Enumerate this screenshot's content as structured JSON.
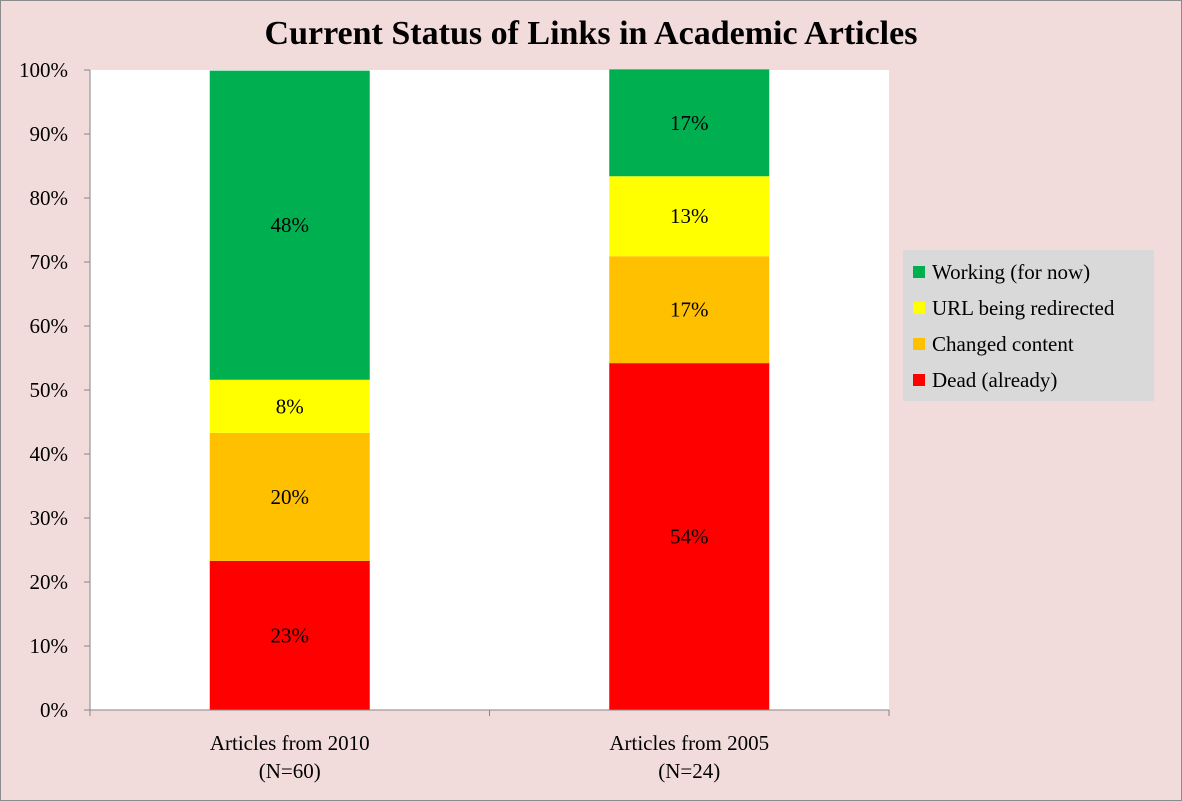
{
  "chart_data": {
    "type": "bar",
    "stacked": true,
    "title": "Current Status of Links in Academic Articles",
    "categories": [
      [
        "Articles from 2010",
        "(N=60)"
      ],
      [
        "Articles from 2005",
        "(N=24)"
      ]
    ],
    "y_ticks": [
      "0%",
      "10%",
      "20%",
      "30%",
      "40%",
      "50%",
      "60%",
      "70%",
      "80%",
      "90%",
      "100%"
    ],
    "ylim": [
      0,
      1
    ],
    "series": [
      {
        "name": "Dead (already)",
        "color": "#ff0000",
        "values": [
          0.233,
          0.542
        ],
        "labels": [
          "23%",
          "54%"
        ]
      },
      {
        "name": "Changed content",
        "color": "#ffc000",
        "values": [
          0.2,
          0.167
        ],
        "labels": [
          "20%",
          "17%"
        ]
      },
      {
        "name": "URL being redirected",
        "color": "#ffff00",
        "values": [
          0.083,
          0.125
        ],
        "labels": [
          "8%",
          "13%"
        ]
      },
      {
        "name": "Working (for now)",
        "color": "#00b050",
        "values": [
          0.483,
          0.167
        ],
        "labels": [
          "48%",
          "17%"
        ]
      }
    ],
    "legend": {
      "placement": "right",
      "order": [
        "Working (for now)",
        "URL being redirected",
        "Changed content",
        "Dead (already)"
      ]
    },
    "grid": false
  }
}
